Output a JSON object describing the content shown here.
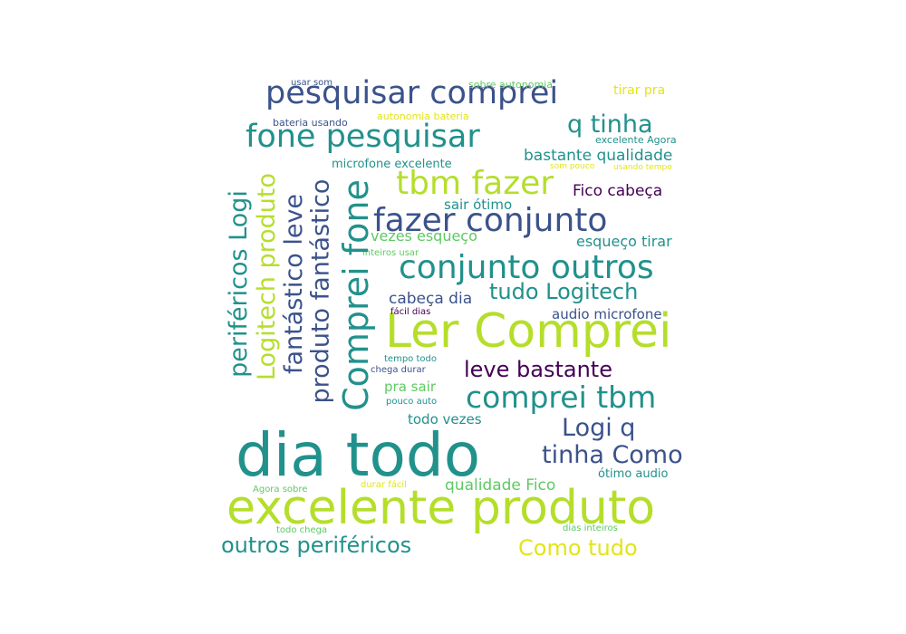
{
  "palette": {
    "background": "#ffffff",
    "purple": "#440154",
    "indigo": "#3b528b",
    "teal": "#21918c",
    "green": "#5ec962",
    "lime": "#b5de2b",
    "yellow": "#e3e418"
  },
  "words": [
    {
      "id": "w01",
      "text": "dia todo",
      "color": "#21918c"
    },
    {
      "id": "w02",
      "text": "excelente produto",
      "color": "#b5de2b"
    },
    {
      "id": "w03",
      "text": "Ler Comprei",
      "color": "#b5de2b"
    },
    {
      "id": "w04",
      "text": "pesquisar comprei",
      "color": "#3b528b"
    },
    {
      "id": "w05",
      "text": "fone pesquisar",
      "color": "#21918c"
    },
    {
      "id": "w06",
      "text": "fazer conjunto",
      "color": "#3b528b"
    },
    {
      "id": "w07",
      "text": "conjunto outros",
      "color": "#21918c"
    },
    {
      "id": "w08",
      "text": "comprei tbm",
      "color": "#21918c"
    },
    {
      "id": "w09",
      "text": "tbm fazer",
      "color": "#b5de2b"
    },
    {
      "id": "w10",
      "text": "Comprei fone",
      "color": "#21918c"
    },
    {
      "id": "w11",
      "text": "outros periféricos",
      "color": "#21918c"
    },
    {
      "id": "w12",
      "text": "periféricos Logi",
      "color": "#21918c"
    },
    {
      "id": "w13",
      "text": "Logitech produto",
      "color": "#b5de2b"
    },
    {
      "id": "w14",
      "text": "fantástico leve",
      "color": "#3b528b"
    },
    {
      "id": "w15",
      "text": "produto fantástico",
      "color": "#3b528b"
    },
    {
      "id": "w16",
      "text": "leve bastante",
      "color": "#440154"
    },
    {
      "id": "w17",
      "text": "tudo Logitech",
      "color": "#21918c"
    },
    {
      "id": "w18",
      "text": "q tinha",
      "color": "#21918c"
    },
    {
      "id": "w19",
      "text": "Logi q",
      "color": "#3b528b"
    },
    {
      "id": "w20",
      "text": "tinha Como",
      "color": "#3b528b"
    },
    {
      "id": "w21",
      "text": "Como tudo",
      "color": "#e3e418"
    },
    {
      "id": "w22",
      "text": "bastante qualidade",
      "color": "#21918c"
    },
    {
      "id": "w23",
      "text": "Fico cabeça",
      "color": "#440154"
    },
    {
      "id": "w24",
      "text": "qualidade Fico",
      "color": "#5ec962"
    },
    {
      "id": "w25",
      "text": "cabeça dia",
      "color": "#3b528b"
    },
    {
      "id": "w26",
      "text": "esqueço tirar",
      "color": "#21918c"
    },
    {
      "id": "w27",
      "text": "vezes esqueço",
      "color": "#5ec962"
    },
    {
      "id": "w28",
      "text": "sair ótimo",
      "color": "#21918c"
    },
    {
      "id": "w29",
      "text": "todo vezes",
      "color": "#21918c"
    },
    {
      "id": "w30",
      "text": "pra sair",
      "color": "#5ec962"
    },
    {
      "id": "w31",
      "text": "audio microfone",
      "color": "#3b528b"
    },
    {
      "id": "w32",
      "text": "microfone excelente",
      "color": "#21918c"
    },
    {
      "id": "w33",
      "text": "ótimo audio",
      "color": "#21918c"
    },
    {
      "id": "w34",
      "text": "tirar pra",
      "color": "#e3e418"
    },
    {
      "id": "w35",
      "text": "excelente Agora",
      "color": "#21918c"
    },
    {
      "id": "w36",
      "text": "sobre autonomia",
      "color": "#5ec962"
    },
    {
      "id": "w37",
      "text": "autonomia bateria",
      "color": "#e3e418"
    },
    {
      "id": "w38",
      "text": "bateria usando",
      "color": "#3b528b"
    },
    {
      "id": "w39",
      "text": "usar som",
      "color": "#3b528b"
    },
    {
      "id": "w40",
      "text": "som pouco",
      "color": "#e3e418"
    },
    {
      "id": "w41",
      "text": "usando tempo",
      "color": "#e3e418"
    },
    {
      "id": "w42",
      "text": "inteiros usar",
      "color": "#5ec962"
    },
    {
      "id": "w43",
      "text": "fácil dias",
      "color": "#440154"
    },
    {
      "id": "w44",
      "text": "tempo todo",
      "color": "#21918c"
    },
    {
      "id": "w45",
      "text": "chega durar",
      "color": "#3b528b"
    },
    {
      "id": "w46",
      "text": "pouco auto",
      "color": "#21918c"
    },
    {
      "id": "w47",
      "text": "Agora sobre",
      "color": "#5ec962"
    },
    {
      "id": "w48",
      "text": "durar fácil",
      "color": "#e3e418"
    },
    {
      "id": "w49",
      "text": "todo chega",
      "color": "#5ec962"
    },
    {
      "id": "w50",
      "text": "dias inteiros",
      "color": "#5ec962"
    }
  ]
}
